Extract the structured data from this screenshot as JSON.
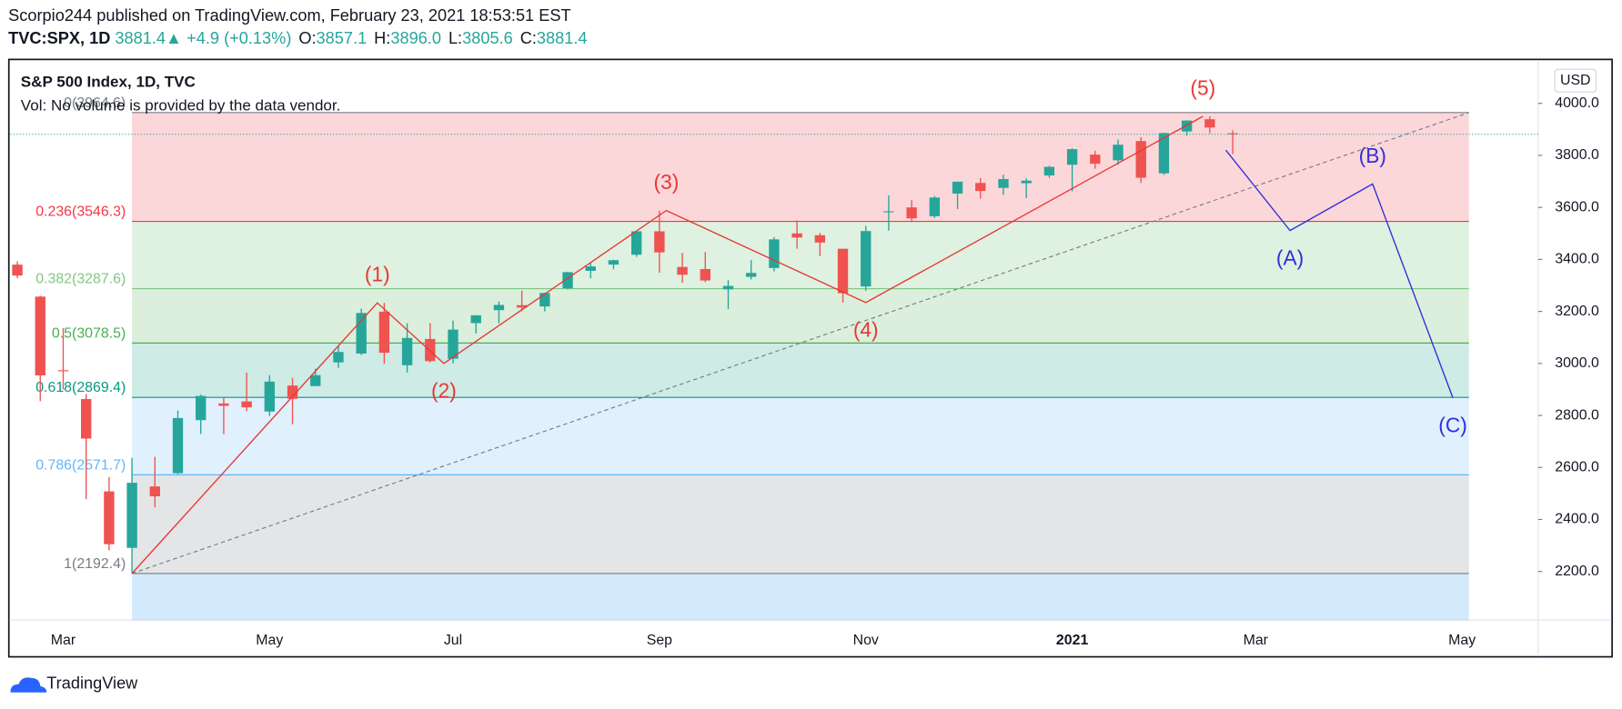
{
  "header": {
    "author_line": "Scorpio244 published on TradingView.com, February 23, 2021 18:53:51 EST",
    "symbol": "TVC:SPX, 1D",
    "last": 3881.4,
    "change_icon": "▲",
    "change": "+4.9 (+0.13%)",
    "ohlc": [
      {
        "label": "O:",
        "value": "3857.1"
      },
      {
        "label": "H:",
        "value": "3896.0"
      },
      {
        "label": "L:",
        "value": "3805.6"
      },
      {
        "label": "C:",
        "value": "3881.4"
      }
    ]
  },
  "legend": {
    "title": "S&P 500 Index, 1D, TVC",
    "volume": "Vol: No volume is provided by the data vendor."
  },
  "currency": "USD",
  "footer": {
    "brand": "TradingView"
  },
  "chart_data": {
    "type": "candlestick",
    "categories": [
      null,
      null,
      "Mar",
      null,
      null,
      null,
      null,
      null,
      null,
      null,
      null,
      "May",
      null,
      null,
      null,
      null,
      null,
      null,
      null,
      "Jul",
      null,
      null,
      null,
      null,
      null,
      null,
      null,
      null,
      "Sep",
      null,
      null,
      null,
      null,
      null,
      null,
      null,
      null,
      "Nov",
      null,
      null,
      null,
      null,
      null,
      null,
      null,
      null,
      "2021",
      null,
      null,
      null,
      null,
      null,
      null,
      null,
      "Mar",
      null,
      null,
      null,
      null,
      null,
      null,
      null,
      null,
      "May",
      null,
      null
    ],
    "open": [
      3380,
      3257,
      2974,
      2863,
      2508,
      2291,
      2527,
      2578,
      2782,
      2846,
      2854,
      2815,
      2915,
      2913,
      3004,
      3038,
      3199,
      2993,
      3094,
      3018,
      3155,
      3205,
      3224,
      3219,
      3289,
      3356,
      3380,
      3418,
      3508,
      3371,
      3363,
      3285,
      3333,
      3367,
      3500,
      3493,
      3441,
      3296,
      3583,
      3600,
      3566,
      3653,
      3694,
      3675,
      3693,
      3723,
      3764,
      3803,
      3781,
      3855,
      3731,
      3892,
      3939,
      3885,
      null,
      null,
      null,
      null,
      null,
      null,
      null,
      null,
      null,
      null,
      null,
      null
    ],
    "high": [
      3393,
      3260,
      3136,
      2882,
      2563,
      2637,
      2641,
      2819,
      2880,
      2869,
      2965,
      2955,
      2945,
      2980,
      3068,
      3211,
      3233,
      3155,
      3155,
      3165,
      3186,
      3238,
      3280,
      3272,
      3352,
      3387,
      3399,
      3509,
      3588,
      3425,
      3428,
      3320,
      3397,
      3486,
      3550,
      3502,
      3441,
      3529,
      3646,
      3628,
      3644,
      3699,
      3713,
      3726,
      3712,
      3760,
      3827,
      3818,
      3861,
      3870,
      3887,
      3935,
      3950,
      3896,
      null,
      null,
      null,
      null,
      null,
      null,
      null,
      null,
      null,
      null,
      null,
      null
    ],
    "low": [
      3328,
      2855,
      2900,
      2478,
      2281,
      2192.4,
      2447,
      2575,
      2729,
      2728,
      2816,
      2798,
      2766,
      2914,
      2983,
      3032,
      2999,
      2965,
      3004,
      3000,
      3115,
      3154,
      3201,
      3200,
      3284,
      3327,
      3362,
      3410,
      3349,
      3310,
      3313,
      3209,
      3323,
      3354,
      3441,
      3413,
      3234,
      3279,
      3511,
      3543,
      3559,
      3594,
      3633,
      3648,
      3636,
      3714,
      3662,
      3749,
      3764,
      3694,
      3725,
      3875,
      3885,
      3805,
      null,
      null,
      null,
      null,
      null,
      null,
      null,
      null,
      null,
      null,
      null,
      null
    ],
    "close": [
      3338,
      2954,
      2972,
      2711,
      2305,
      2541,
      2489,
      2790,
      2875,
      2837,
      2831,
      2930,
      2864,
      2955,
      3044,
      3194,
      3041,
      3098,
      3009,
      3130,
      3185,
      3225,
      3215,
      3271,
      3351,
      3373,
      3397,
      3508,
      3427,
      3341,
      3319,
      3298,
      3348,
      3477,
      3484,
      3465,
      3270,
      3509,
      3585,
      3558,
      3638,
      3699,
      3663,
      3709,
      3703,
      3756,
      3824,
      3768,
      3841,
      3714,
      3886,
      3934,
      3907,
      3881.4,
      null,
      null,
      null,
      null,
      null,
      null,
      null,
      null,
      null,
      null,
      null,
      null
    ],
    "up_color": "#26a69a",
    "down_color": "#ef5350",
    "ylim": [
      2013,
      4167
    ],
    "yticks": [
      {
        "value": 2200,
        "label": "2200.0"
      },
      {
        "value": 2400,
        "label": "2400.0"
      },
      {
        "value": 2600,
        "label": "2600.0"
      },
      {
        "value": 2800,
        "label": "2800.0"
      },
      {
        "value": 3000,
        "label": "3000.0"
      },
      {
        "value": 3200,
        "label": "3200.0"
      },
      {
        "value": 3400,
        "label": "3400.0"
      },
      {
        "value": 3600,
        "label": "3600.0"
      },
      {
        "value": 3800,
        "label": "3800.0"
      },
      {
        "value": 4000,
        "label": "4000.0"
      }
    ],
    "grid": false,
    "fibonacci": {
      "x_range": [
        5,
        63.3
      ],
      "levels": [
        {
          "value": 3964.6,
          "label": "0(3964.6)",
          "color": "#787b86",
          "fill": "rgba(242,54,69,0.2)"
        },
        {
          "value": 3546.3,
          "label": "0.236(3546.3)",
          "color": "#f23645",
          "fill": "rgba(129,199,132,0.25)"
        },
        {
          "value": 3287.6,
          "label": "0.382(3287.6)",
          "color": "#81c784",
          "fill": "rgba(76,175,80,0.2)"
        },
        {
          "value": 3078.5,
          "label": "0.5(3078.5)",
          "color": "#4caf50",
          "fill": "rgba(8,153,129,0.2)"
        },
        {
          "value": 2869.4,
          "label": "0.618(2869.4)",
          "color": "#089981",
          "fill": "rgba(100,181,246,0.2)"
        },
        {
          "value": 2571.7,
          "label": "0.786(2571.7)",
          "color": "#64b5f6",
          "fill": "rgba(120,123,134,0.2)"
        },
        {
          "value": 2192.4,
          "label": "1(2192.4)",
          "color": "#787b86",
          "fill": "rgba(33,150,243,0.2)"
        }
      ]
    },
    "trendline": {
      "color": "#787b86",
      "x": [
        5,
        63.3
      ],
      "values": [
        2192.4,
        3964.6
      ]
    },
    "waves": [
      {
        "color": "#e53935",
        "x": [
          5,
          15.7,
          18.6,
          28.3,
          37,
          51.7
        ],
        "values": [
          2192.4,
          3233,
          3000,
          3588,
          3234,
          3950
        ],
        "labels": [
          null,
          "(1)",
          "(2)",
          "(3)",
          "(4)",
          "(5)"
        ]
      },
      {
        "color": "#3030d8",
        "x": [
          52.7,
          55.5,
          59.1,
          62.6
        ],
        "values": [
          3820,
          3511,
          3690,
          2868
        ],
        "labels": [
          null,
          "(A)",
          "(B)",
          "(C)"
        ]
      }
    ]
  }
}
